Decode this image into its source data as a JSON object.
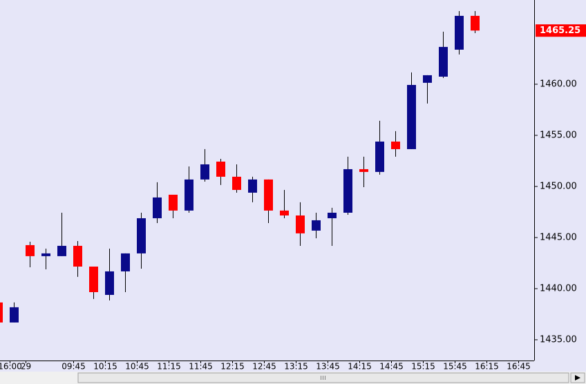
{
  "chart_data": {
    "type": "candlestick",
    "categories": [
      null,
      "16:00",
      "29",
      null,
      null,
      "09:45",
      null,
      "10:15",
      null,
      "10:45",
      null,
      "11:15",
      null,
      "11:45",
      null,
      "12:15",
      null,
      "12:45",
      null,
      "13:15",
      null,
      "13:45",
      null,
      "14:15",
      null,
      "14:45",
      null,
      "15:15",
      null,
      "15:45",
      null,
      "16:15",
      null,
      "16:45"
    ],
    "open": [
      1438.65,
      1436.69,
      1444.26,
      1443.18,
      1443.18,
      1444.19,
      1442.16,
      1439.39,
      1441.69,
      1443.45,
      1446.89,
      1449.19,
      1447.64,
      1450.68,
      1452.43,
      1450.95,
      1449.39,
      1450.68,
      1447.64,
      1447.16,
      1445.68,
      1446.89,
      1447.43,
      1451.69,
      1451.42,
      1454.39,
      1453.65,
      1460.14,
      1460.74,
      1463.38,
      1466.69,
      null,
      null,
      null
    ],
    "high": [
      1438.65,
      1438.65,
      1444.59,
      1443.92,
      1447.43,
      1444.66,
      1442.16,
      1443.92,
      1443.45,
      1447.43,
      1450.41,
      1449.19,
      1451.96,
      1453.65,
      1452.7,
      1452.16,
      1450.95,
      1450.68,
      1449.66,
      1448.45,
      1447.43,
      1447.91,
      1452.91,
      1452.91,
      1456.42,
      1455.41,
      1461.15,
      1460.88,
      1465.14,
      1467.16,
      1467.16,
      null,
      null,
      null
    ],
    "low": [
      1436.69,
      1436.69,
      1442.09,
      1441.89,
      1443.18,
      1441.15,
      1438.99,
      1438.85,
      1439.66,
      1441.96,
      1446.42,
      1446.89,
      1447.43,
      1450.47,
      1450.14,
      1449.39,
      1448.45,
      1446.42,
      1446.89,
      1444.19,
      1444.93,
      1444.19,
      1447.23,
      1449.93,
      1451.15,
      1452.91,
      1453.65,
      1458.11,
      1460.61,
      1462.91,
      1465.0,
      null,
      null,
      null
    ],
    "close": [
      1436.69,
      1438.18,
      1443.18,
      1443.45,
      1444.19,
      1442.16,
      1439.66,
      1441.69,
      1443.45,
      1446.89,
      1448.92,
      1447.64,
      1450.68,
      1452.16,
      1450.95,
      1449.66,
      1450.68,
      1447.64,
      1447.16,
      1445.41,
      1446.69,
      1447.43,
      1451.69,
      1451.42,
      1454.39,
      1453.65,
      1459.93,
      1460.88,
      1463.65,
      1466.69,
      1465.25,
      null,
      null,
      null
    ],
    "up_color": "#0a0a8a",
    "down_color": "#ff0000",
    "ylim": [
      1432.97,
      1468.24
    ],
    "yticks": [
      {
        "value": 1435,
        "label": "1435.00"
      },
      {
        "value": 1440,
        "label": "1440.00"
      },
      {
        "value": 1445,
        "label": "1445.00"
      },
      {
        "value": 1450,
        "label": "1450.00"
      },
      {
        "value": 1455,
        "label": "1455.00"
      },
      {
        "value": 1460,
        "label": "1460.00"
      }
    ],
    "last_price": 1465.25
  }
}
